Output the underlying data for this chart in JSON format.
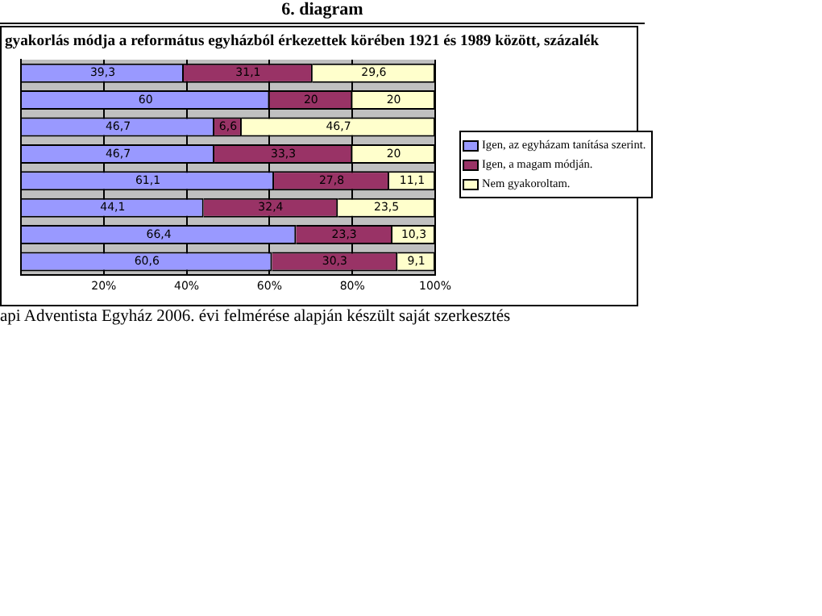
{
  "chart_data": {
    "type": "bar",
    "orientation": "horizontal",
    "stacked": true,
    "subtitle": "6. diagram",
    "title": "gyakorlás módja a református egyházból érkezettek körében 1921 és 1989 között, százalék",
    "categories": [
      null,
      null,
      null,
      null,
      null,
      null,
      null,
      null
    ],
    "series": [
      {
        "name": "Igen, az egyházam tanítása szerint.",
        "color": "#9999ff",
        "values": [
          39.3,
          60,
          46.7,
          46.7,
          61.1,
          44.1,
          66.4,
          60.6
        ],
        "value_labels": [
          "39,3",
          "60",
          "46,7",
          "46,7",
          "61,1",
          "44,1",
          "66,4",
          "60,6"
        ]
      },
      {
        "name": "Igen, a magam módján.",
        "color": "#993366",
        "values": [
          31.1,
          20,
          6.6,
          33.3,
          27.8,
          32.4,
          23.3,
          30.3
        ],
        "value_labels": [
          "31,1",
          "20",
          "6,6",
          "33,3",
          "27,8",
          "32,4",
          "23,3",
          "30,3"
        ]
      },
      {
        "name": "Nem gyakoroltam.",
        "color": "#ffffcc",
        "values": [
          29.6,
          20,
          46.7,
          20,
          11.1,
          23.5,
          10.3,
          9.1
        ],
        "value_labels": [
          "29,6",
          "20",
          "46,7",
          "20",
          "11,1",
          "23,5",
          "10,3",
          "9,1"
        ]
      }
    ],
    "xlim": [
      0,
      100
    ],
    "xticks": [
      {
        "value": 0,
        "label": null
      },
      {
        "value": 20,
        "label": "20%"
      },
      {
        "value": 40,
        "label": "40%"
      },
      {
        "value": 60,
        "label": "60%"
      },
      {
        "value": 80,
        "label": "80%"
      },
      {
        "value": 100,
        "label": "100%"
      }
    ],
    "tick_labels": "x",
    "grid": "x",
    "legend": "right",
    "annotations": [
      "api Adventista Egyház 2006. évi felmérése alapján készült saját szerkesztés"
    ]
  }
}
